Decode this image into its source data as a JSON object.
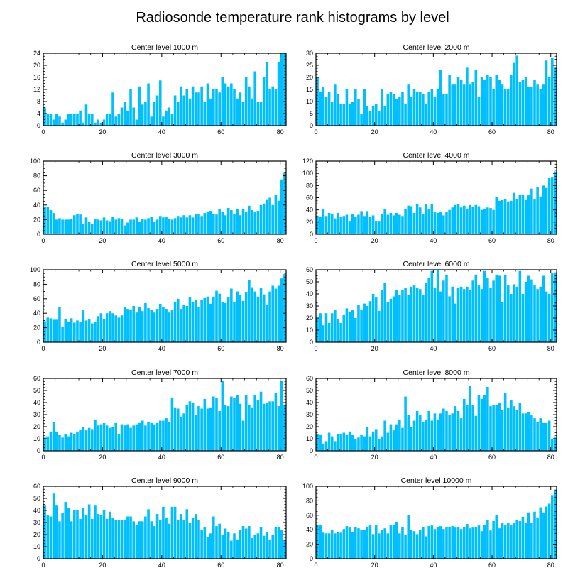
{
  "title": "Radiosonde temperature rank histograms by level",
  "colors": {
    "bar": "#00BFFF",
    "axis": "#000000"
  },
  "chart_data": [
    {
      "type": "bar",
      "title": "Center level 1000 m",
      "xlim": [
        0,
        82
      ],
      "ylim": [
        0,
        24
      ],
      "xticks": [
        0,
        20,
        40,
        60,
        80
      ],
      "yticks": [
        0,
        4,
        8,
        12,
        16,
        20,
        24
      ],
      "values": [
        6,
        4,
        4,
        2,
        4,
        3,
        1,
        2,
        4,
        4,
        4,
        4,
        5,
        1,
        7,
        4,
        4,
        1,
        2,
        1,
        2,
        4,
        4,
        11,
        3,
        4,
        6,
        8,
        5,
        12,
        6,
        2,
        13,
        7,
        8,
        14,
        3,
        8,
        10,
        15,
        3,
        5,
        6,
        4,
        10,
        8,
        13,
        10,
        12,
        9,
        13,
        11,
        11,
        13,
        8,
        14,
        9,
        12,
        12,
        11,
        16,
        14,
        13,
        14,
        12,
        9,
        11,
        8,
        16,
        13,
        9,
        18,
        8,
        8,
        16,
        21,
        12,
        13,
        12,
        21,
        24,
        24
      ]
    },
    {
      "type": "bar",
      "title": "Center level 2000 m",
      "xlim": [
        0,
        82
      ],
      "ylim": [
        0,
        30
      ],
      "xticks": [
        0,
        20,
        40,
        60,
        80
      ],
      "yticks": [
        0,
        5,
        10,
        15,
        20,
        25,
        30
      ],
      "values": [
        20,
        14,
        16,
        12,
        14,
        10,
        17,
        13,
        9,
        9,
        15,
        9,
        10,
        15,
        11,
        5,
        15,
        8,
        6,
        8,
        9,
        6,
        15,
        8,
        13,
        14,
        13,
        11,
        12,
        14,
        9,
        17,
        12,
        15,
        14,
        14,
        13,
        9,
        14,
        15,
        12,
        15,
        23,
        13,
        13,
        21,
        17,
        17,
        20,
        19,
        17,
        24,
        17,
        18,
        23,
        12,
        20,
        19,
        21,
        20,
        15,
        21,
        19,
        17,
        15,
        15,
        21,
        26,
        29,
        18,
        19,
        20,
        16,
        16,
        19,
        17,
        15,
        17,
        27,
        20,
        28,
        24
      ]
    },
    {
      "type": "bar",
      "title": "Center level 3000 m",
      "xlim": [
        0,
        82
      ],
      "ylim": [
        0,
        100
      ],
      "xticks": [
        0,
        20,
        40,
        60,
        80
      ],
      "yticks": [
        0,
        20,
        40,
        60,
        80,
        100
      ],
      "values": [
        38,
        37,
        33,
        29,
        20,
        22,
        20,
        20,
        20,
        21,
        26,
        28,
        27,
        14,
        23,
        17,
        14,
        21,
        20,
        19,
        23,
        19,
        18,
        24,
        20,
        22,
        21,
        12,
        16,
        20,
        20,
        23,
        17,
        21,
        20,
        22,
        24,
        17,
        20,
        25,
        23,
        24,
        21,
        20,
        22,
        25,
        23,
        26,
        23,
        26,
        23,
        28,
        28,
        25,
        29,
        31,
        32,
        28,
        27,
        35,
        31,
        26,
        36,
        33,
        28,
        35,
        26,
        34,
        31,
        39,
        33,
        30,
        32,
        40,
        42,
        47,
        50,
        40,
        54,
        46,
        75,
        85
      ]
    },
    {
      "type": "bar",
      "title": "Center level 4000 m",
      "xlim": [
        0,
        82
      ],
      "ylim": [
        0,
        120
      ],
      "xticks": [
        0,
        20,
        40,
        60,
        80
      ],
      "yticks": [
        0,
        20,
        40,
        60,
        80,
        100,
        120
      ],
      "values": [
        30,
        28,
        42,
        30,
        35,
        34,
        26,
        35,
        29,
        30,
        32,
        22,
        33,
        29,
        32,
        38,
        30,
        38,
        28,
        31,
        22,
        22,
        33,
        41,
        32,
        35,
        31,
        35,
        32,
        30,
        41,
        47,
        46,
        35,
        50,
        44,
        33,
        50,
        41,
        49,
        36,
        35,
        37,
        31,
        37,
        40,
        44,
        48,
        49,
        44,
        47,
        42,
        48,
        45,
        48,
        46,
        40,
        42,
        44,
        43,
        40,
        61,
        55,
        56,
        58,
        54,
        55,
        68,
        58,
        65,
        65,
        56,
        64,
        75,
        57,
        77,
        62,
        80,
        76,
        92,
        93,
        103
      ]
    },
    {
      "type": "bar",
      "title": "Center level 5000 m",
      "xlim": [
        0,
        82
      ],
      "ylim": [
        0,
        100
      ],
      "xticks": [
        0,
        20,
        40,
        60,
        80
      ],
      "yticks": [
        0,
        20,
        40,
        60,
        80,
        100
      ],
      "values": [
        29,
        34,
        33,
        31,
        31,
        48,
        21,
        32,
        28,
        33,
        27,
        30,
        28,
        44,
        30,
        32,
        26,
        28,
        36,
        40,
        32,
        40,
        43,
        40,
        37,
        34,
        37,
        48,
        46,
        45,
        50,
        41,
        49,
        43,
        54,
        47,
        45,
        41,
        46,
        53,
        49,
        46,
        41,
        45,
        55,
        60,
        46,
        51,
        50,
        62,
        55,
        58,
        49,
        58,
        61,
        63,
        53,
        63,
        71,
        67,
        56,
        54,
        62,
        74,
        56,
        70,
        65,
        57,
        69,
        86,
        76,
        70,
        63,
        75,
        66,
        52,
        70,
        78,
        74,
        78,
        88,
        94
      ]
    },
    {
      "type": "bar",
      "title": "Center level 6000 m",
      "xlim": [
        0,
        82
      ],
      "ylim": [
        0,
        60
      ],
      "xticks": [
        0,
        20,
        40,
        60,
        80
      ],
      "yticks": [
        0,
        10,
        20,
        30,
        40,
        50,
        60
      ],
      "values": [
        20,
        24,
        14,
        24,
        16,
        24,
        27,
        19,
        16,
        23,
        28,
        25,
        27,
        20,
        31,
        27,
        32,
        30,
        34,
        40,
        37,
        26,
        43,
        49,
        33,
        36,
        38,
        43,
        39,
        43,
        45,
        39,
        46,
        47,
        45,
        44,
        39,
        49,
        53,
        59,
        45,
        60,
        42,
        51,
        56,
        38,
        46,
        32,
        45,
        46,
        44,
        46,
        43,
        51,
        56,
        47,
        44,
        59,
        53,
        45,
        51,
        56,
        55,
        33,
        56,
        47,
        40,
        48,
        46,
        59,
        40,
        50,
        55,
        52,
        47,
        44,
        46,
        55,
        42,
        40,
        57,
        57
      ]
    },
    {
      "type": "bar",
      "title": "Center level 7000 m",
      "xlim": [
        0,
        82
      ],
      "ylim": [
        0,
        60
      ],
      "xticks": [
        0,
        20,
        40,
        60,
        80
      ],
      "yticks": [
        0,
        10,
        20,
        30,
        40,
        50,
        60
      ],
      "values": [
        11,
        12,
        16,
        24,
        16,
        13,
        11,
        14,
        12,
        15,
        14,
        16,
        17,
        20,
        17,
        19,
        18,
        26,
        21,
        22,
        23,
        21,
        19,
        20,
        23,
        14,
        22,
        21,
        22,
        19,
        21,
        22,
        23,
        25,
        21,
        24,
        23,
        22,
        23,
        25,
        25,
        27,
        24,
        44,
        36,
        35,
        28,
        31,
        38,
        41,
        40,
        30,
        37,
        35,
        43,
        35,
        36,
        45,
        44,
        33,
        58,
        38,
        37,
        45,
        44,
        46,
        39,
        25,
        46,
        38,
        36,
        46,
        42,
        49,
        39,
        40,
        41,
        41,
        48,
        37,
        58,
        38
      ]
    },
    {
      "type": "bar",
      "title": "Center level 8000 m",
      "xlim": [
        0,
        82
      ],
      "ylim": [
        0,
        60
      ],
      "xticks": [
        0,
        20,
        40,
        60,
        80
      ],
      "yticks": [
        0,
        10,
        20,
        30,
        40,
        50,
        60
      ],
      "values": [
        14,
        13,
        6,
        8,
        15,
        12,
        8,
        14,
        14,
        15,
        13,
        16,
        13,
        10,
        11,
        13,
        12,
        20,
        12,
        16,
        18,
        10,
        12,
        25,
        15,
        22,
        17,
        22,
        26,
        19,
        45,
        30,
        20,
        25,
        33,
        30,
        24,
        26,
        33,
        25,
        31,
        26,
        31,
        35,
        33,
        30,
        31,
        37,
        33,
        27,
        43,
        38,
        54,
        38,
        29,
        46,
        43,
        46,
        53,
        37,
        38,
        38,
        40,
        34,
        48,
        36,
        42,
        37,
        34,
        40,
        31,
        31,
        32,
        30,
        27,
        24,
        27,
        23,
        23,
        25,
        10,
        11
      ]
    },
    {
      "type": "bar",
      "title": "Center level 9000 m",
      "xlim": [
        0,
        82
      ],
      "ylim": [
        0,
        60
      ],
      "xticks": [
        0,
        20,
        40,
        60,
        80
      ],
      "yticks": [
        0,
        10,
        20,
        30,
        40,
        50,
        60
      ],
      "values": [
        44,
        36,
        35,
        54,
        44,
        31,
        38,
        47,
        42,
        31,
        40,
        40,
        33,
        42,
        36,
        45,
        33,
        44,
        37,
        36,
        40,
        33,
        39,
        34,
        32,
        32,
        32,
        32,
        35,
        35,
        31,
        28,
        31,
        31,
        35,
        41,
        31,
        27,
        37,
        32,
        43,
        34,
        29,
        43,
        43,
        32,
        37,
        32,
        41,
        30,
        34,
        37,
        32,
        24,
        26,
        18,
        21,
        35,
        27,
        29,
        20,
        25,
        22,
        15,
        21,
        16,
        24,
        27,
        25,
        27,
        17,
        20,
        21,
        26,
        19,
        22,
        16,
        20,
        26,
        26,
        24,
        16
      ]
    },
    {
      "type": "bar",
      "title": "Center level 10000 m",
      "xlim": [
        0,
        82
      ],
      "ylim": [
        0,
        100
      ],
      "xticks": [
        0,
        20,
        40,
        60,
        80
      ],
      "yticks": [
        0,
        20,
        40,
        60,
        80,
        100
      ],
      "values": [
        46,
        46,
        36,
        35,
        35,
        40,
        35,
        37,
        36,
        41,
        45,
        43,
        37,
        44,
        42,
        40,
        40,
        44,
        46,
        34,
        46,
        35,
        40,
        42,
        35,
        46,
        47,
        51,
        35,
        44,
        33,
        60,
        40,
        38,
        34,
        40,
        44,
        31,
        45,
        46,
        41,
        44,
        45,
        41,
        44,
        44,
        45,
        43,
        44,
        41,
        44,
        48,
        42,
        43,
        44,
        46,
        38,
        47,
        53,
        39,
        52,
        60,
        42,
        49,
        46,
        49,
        46,
        49,
        54,
        52,
        58,
        50,
        64,
        49,
        65,
        57,
        71,
        64,
        72,
        76,
        88,
        95
      ]
    }
  ]
}
